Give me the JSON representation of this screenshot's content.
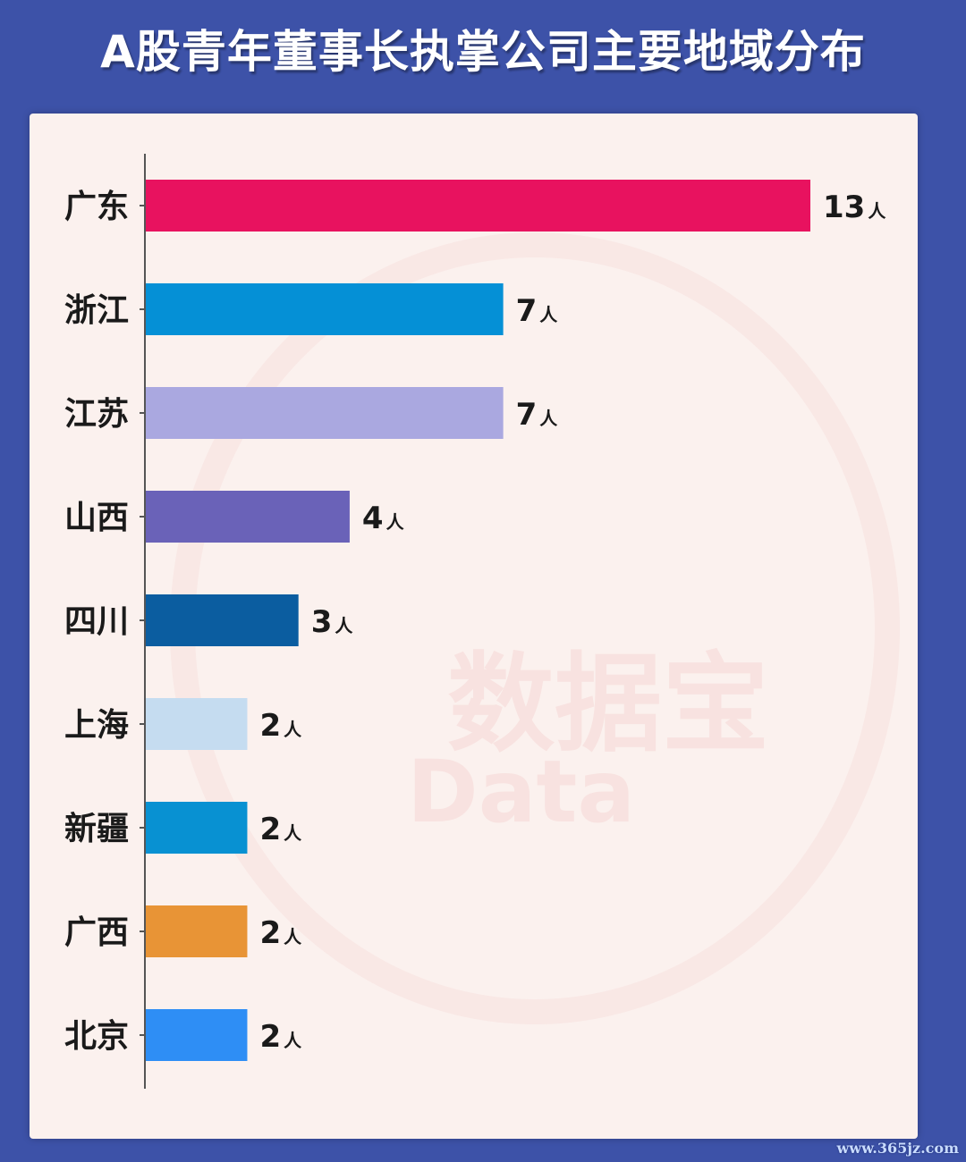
{
  "title": "A股青年董事长执掌公司主要地域分布",
  "watermark": {
    "text": "数据宝",
    "sub": "Data"
  },
  "footer": "www.365jz.com",
  "colors": {
    "background": "#3d52a8",
    "card": "#fbf1ee",
    "axis": "#555555"
  },
  "chart_data": {
    "type": "bar",
    "orientation": "horizontal",
    "title": "A股青年董事长执掌公司主要地域分布",
    "categories": [
      "广东",
      "浙江",
      "江苏",
      "山西",
      "四川",
      "上海",
      "新疆",
      "广西",
      "北京"
    ],
    "values": [
      13,
      7,
      7,
      4,
      3,
      2,
      2,
      2,
      2
    ],
    "unit": "人",
    "colors": [
      "#e8125f",
      "#0590d6",
      "#aaa8e0",
      "#6a62b8",
      "#0b5da0",
      "#c5dcf0",
      "#0891d2",
      "#e89436",
      "#2e8ef5"
    ],
    "xlim": [
      0,
      13
    ],
    "grid": false,
    "legend": "none"
  }
}
